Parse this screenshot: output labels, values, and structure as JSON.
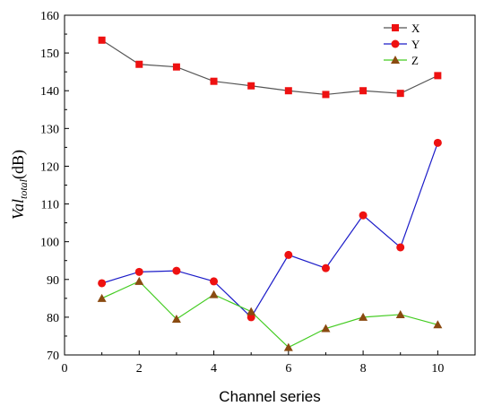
{
  "chart_data": {
    "type": "line",
    "xlabel": "Channel series",
    "ylabel": {
      "main": "Val",
      "sub": "total",
      "unit": "(dB)"
    },
    "xlim": [
      0,
      11
    ],
    "ylim": [
      70,
      160
    ],
    "xticks": [
      0,
      2,
      4,
      6,
      8,
      10
    ],
    "yticks": [
      70,
      80,
      90,
      100,
      110,
      120,
      130,
      140,
      150,
      160
    ],
    "x": [
      1,
      2,
      3,
      4,
      5,
      6,
      7,
      8,
      9,
      10
    ],
    "legend_position": "top-right",
    "series": [
      {
        "name": "X",
        "marker": "square",
        "line_color": "#555555",
        "marker_color": "#ee1111",
        "values": [
          153.4,
          147.0,
          146.3,
          142.5,
          141.3,
          140.0,
          139.0,
          140.0,
          139.3,
          144.0
        ]
      },
      {
        "name": "Y",
        "marker": "circle",
        "line_color": "#1c1cc8",
        "marker_color": "#ee1111",
        "values": [
          89.0,
          92.0,
          92.3,
          89.5,
          80.0,
          96.5,
          93.0,
          107.0,
          98.5,
          126.2
        ]
      },
      {
        "name": "Z",
        "marker": "triangle",
        "line_color": "#44cc22",
        "marker_color": "#8a4a10",
        "values": [
          85.0,
          89.5,
          79.5,
          86.0,
          81.5,
          72.0,
          77.0,
          80.0,
          80.7,
          78.0
        ]
      }
    ]
  }
}
